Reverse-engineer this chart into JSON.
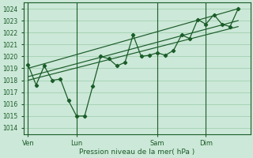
{
  "xlabel": "Pression niveau de la mer( hPa )",
  "ylim": [
    1013.5,
    1024.5
  ],
  "yticks": [
    1014,
    1015,
    1016,
    1017,
    1018,
    1019,
    1020,
    1021,
    1022,
    1023,
    1024
  ],
  "bg_color": "#cce8d8",
  "grid_color": "#99ccaa",
  "line_color": "#1a5c28",
  "x_tick_labels": [
    "Ven",
    "Lun",
    "Sam",
    "Dim"
  ],
  "x_tick_positions": [
    0,
    12,
    32,
    44
  ],
  "x_vlines": [
    0,
    12,
    32,
    44
  ],
  "data_x": [
    0,
    2,
    4,
    6,
    8,
    10,
    12,
    14,
    16,
    18,
    20,
    22,
    24,
    26,
    28,
    30,
    32,
    34,
    36,
    38,
    40,
    42,
    44,
    46,
    48,
    50,
    52
  ],
  "data_y": [
    1019.3,
    1017.6,
    1019.2,
    1018.0,
    1018.1,
    1016.3,
    1015.0,
    1015.0,
    1017.5,
    1020.0,
    1019.8,
    1019.2,
    1019.5,
    1021.8,
    1020.0,
    1020.1,
    1020.3,
    1020.1,
    1020.5,
    1021.8,
    1021.5,
    1023.1,
    1022.7,
    1023.5,
    1022.7,
    1022.5,
    1024.0
  ],
  "trend_line1_x": [
    0,
    52
  ],
  "trend_line1_y": [
    1018.0,
    1022.5
  ],
  "trend_line2_x": [
    0,
    52
  ],
  "trend_line2_y": [
    1018.3,
    1023.0
  ],
  "trend_line3_x": [
    0,
    52
  ],
  "trend_line3_y": [
    1019.0,
    1024.0
  ],
  "xlim": [
    -1,
    55
  ]
}
